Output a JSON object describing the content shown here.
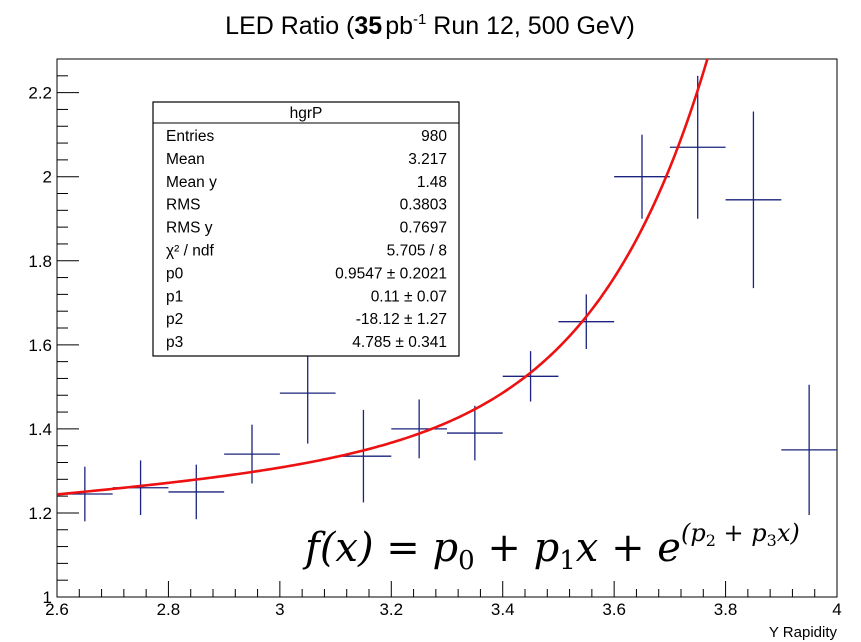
{
  "chart_data": {
    "type": "scatter",
    "title_prefix": "LED Ratio (",
    "title_lumi": "35",
    "title_unit": "pb",
    "title_sup": "-1",
    "title_suffix": " Run 12, 500 GeV)",
    "xlabel": "Y Rapidity",
    "ylabel": "",
    "xlim": [
      2.6,
      4.0
    ],
    "ylim": [
      1.0,
      2.28
    ],
    "xticks": [
      2.6,
      2.8,
      3.0,
      3.2,
      3.4,
      3.6,
      3.8,
      4.0
    ],
    "xtick_labels": [
      "2.6",
      "2.8",
      "3",
      "3.2",
      "3.4",
      "3.6",
      "3.8",
      "4"
    ],
    "yticks": [
      1.0,
      1.2,
      1.4,
      1.6,
      1.8,
      2.0,
      2.2
    ],
    "ytick_labels": [
      "1",
      "1.2",
      "1.4",
      "1.6",
      "1.8",
      "2",
      "2.2"
    ],
    "grid": false,
    "points": [
      {
        "x": 2.65,
        "y": 1.245,
        "xerr": 0.05,
        "yerr": 0.065
      },
      {
        "x": 2.75,
        "y": 1.26,
        "xerr": 0.05,
        "yerr": 0.065
      },
      {
        "x": 2.85,
        "y": 1.25,
        "xerr": 0.05,
        "yerr": 0.065
      },
      {
        "x": 2.95,
        "y": 1.34,
        "xerr": 0.05,
        "yerr": 0.07
      },
      {
        "x": 3.05,
        "y": 1.485,
        "xerr": 0.05,
        "yerr": 0.12
      },
      {
        "x": 3.15,
        "y": 1.335,
        "xerr": 0.05,
        "yerr": 0.11
      },
      {
        "x": 3.25,
        "y": 1.4,
        "xerr": 0.05,
        "yerr": 0.07
      },
      {
        "x": 3.35,
        "y": 1.39,
        "xerr": 0.05,
        "yerr": 0.065
      },
      {
        "x": 3.45,
        "y": 1.525,
        "xerr": 0.05,
        "yerr": 0.06
      },
      {
        "x": 3.55,
        "y": 1.655,
        "xerr": 0.05,
        "yerr": 0.065
      },
      {
        "x": 3.65,
        "y": 2.0,
        "xerr": 0.05,
        "yerr": 0.1
      },
      {
        "x": 3.75,
        "y": 2.07,
        "xerr": 0.05,
        "yerr": 0.17
      },
      {
        "x": 3.85,
        "y": 1.945,
        "xerr": 0.05,
        "yerr": 0.21
      },
      {
        "x": 3.95,
        "y": 1.35,
        "xerr": 0.05,
        "yerr": 0.155
      }
    ],
    "fit": {
      "p0": 0.9547,
      "p1": 0.11,
      "p2": -18.12,
      "p3": 4.785,
      "x_range": [
        2.6,
        4.0
      ]
    },
    "formula": {
      "f": "f",
      "x_open": "(x) = p",
      "sub0": "0",
      "plus1": " + p",
      "sub1": "1",
      "xe": "x + e",
      "exp_open": "(p",
      "esub2": "2",
      "exp_mid": " + p",
      "esub3": "3",
      "exp_close": "x)"
    },
    "stats": {
      "name": "hgrP",
      "rows": [
        {
          "label": "Entries",
          "value": "980"
        },
        {
          "label": "Mean",
          "value": "3.217"
        },
        {
          "label": "Mean y",
          "value": "1.48"
        },
        {
          "label": "RMS",
          "value": "0.3803"
        },
        {
          "label": "RMS y",
          "value": "0.7697"
        },
        {
          "label": "χ² / ndf",
          "value": "5.705 / 8"
        },
        {
          "label": "p0",
          "value": "0.9547 ± 0.2021"
        },
        {
          "label": "p1",
          "value": "0.11 ± 0.07"
        },
        {
          "label": "p2",
          "value": "-18.12 ± 1.27"
        },
        {
          "label": "p3",
          "value": "4.785 ± 0.341"
        }
      ]
    },
    "colors": {
      "points": "#1a237e",
      "fit": "#ee1111",
      "axis": "#000000"
    }
  }
}
